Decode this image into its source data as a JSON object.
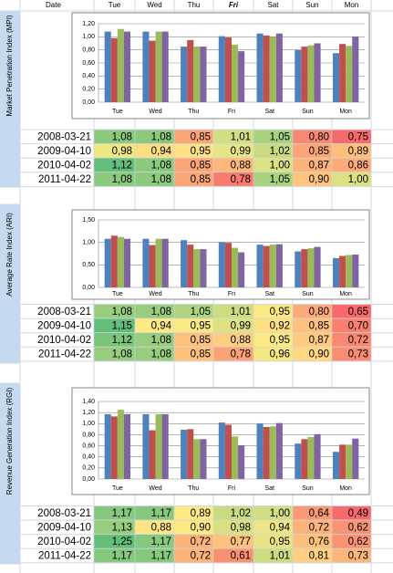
{
  "header": {
    "date": "Date",
    "days": [
      "Tue",
      "Wed",
      "Thu",
      "Fri",
      "Sat",
      "Sun",
      "Mon"
    ]
  },
  "chart_data": [
    {
      "type": "bar",
      "y_label": "Market Penetration Index (MPI)",
      "categories": [
        "Tue",
        "Wed",
        "Thu",
        "Fri",
        "Sat",
        "Sun",
        "Mon"
      ],
      "ylim": [
        0,
        1.2
      ],
      "yticks": [
        {
          "value": 0,
          "label": "0,00"
        },
        {
          "value": 0.2,
          "label": "0,20"
        },
        {
          "value": 0.4,
          "label": "0,40"
        },
        {
          "value": 0.6,
          "label": "0,60"
        },
        {
          "value": 0.8,
          "label": "0,80"
        },
        {
          "value": 1,
          "label": "1,00"
        },
        {
          "value": 1.2,
          "label": "1,20"
        }
      ],
      "series": [
        {
          "color": "#4f81bd",
          "values": [
            1.08,
            1.08,
            0.85,
            1.01,
            1.05,
            0.8,
            0.75
          ]
        },
        {
          "color": "#c0504d",
          "values": [
            0.98,
            0.94,
            0.95,
            0.99,
            1.02,
            0.85,
            0.89
          ]
        },
        {
          "color": "#9bbb59",
          "values": [
            1.12,
            1.08,
            0.85,
            0.88,
            1.0,
            0.87,
            0.86
          ]
        },
        {
          "color": "#8064a2",
          "values": [
            1.08,
            1.08,
            0.85,
            0.78,
            1.05,
            0.9,
            1.0
          ]
        }
      ]
    },
    {
      "type": "bar",
      "y_label": "Average Rate Index (ARI)",
      "categories": [
        "Tue",
        "Wed",
        "Thu",
        "Fri",
        "Sat",
        "Sun",
        "Mon"
      ],
      "ylim": [
        0,
        1.5
      ],
      "yticks": [
        {
          "value": 0,
          "label": "0,00"
        },
        {
          "value": 0.5,
          "label": "0,50"
        },
        {
          "value": 1,
          "label": "1,00"
        },
        {
          "value": 1.5,
          "label": "1,50"
        }
      ],
      "series": [
        {
          "color": "#4f81bd",
          "values": [
            1.08,
            1.08,
            1.05,
            1.01,
            0.95,
            0.8,
            0.65
          ]
        },
        {
          "color": "#c0504d",
          "values": [
            1.15,
            0.94,
            0.95,
            0.99,
            0.92,
            0.85,
            0.7
          ]
        },
        {
          "color": "#9bbb59",
          "values": [
            1.12,
            1.08,
            0.85,
            0.88,
            0.95,
            0.87,
            0.72
          ]
        },
        {
          "color": "#8064a2",
          "values": [
            1.08,
            1.08,
            0.85,
            0.78,
            0.96,
            0.9,
            0.73
          ]
        }
      ]
    },
    {
      "type": "bar",
      "y_label": "Revenue Generation Index (RGI)",
      "categories": [
        "Tue",
        "Wed",
        "Thu",
        "Fri",
        "Sat",
        "Sun",
        "Mon"
      ],
      "ylim": [
        0,
        1.4
      ],
      "yticks": [
        {
          "value": 0,
          "label": "0,00"
        },
        {
          "value": 0.2,
          "label": "0,20"
        },
        {
          "value": 0.4,
          "label": "0,40"
        },
        {
          "value": 0.6,
          "label": "0,60"
        },
        {
          "value": 0.8,
          "label": "0,80"
        },
        {
          "value": 1,
          "label": "1,00"
        },
        {
          "value": 1.2,
          "label": "1,20"
        },
        {
          "value": 1.4,
          "label": "1,40"
        }
      ],
      "series": [
        {
          "color": "#4f81bd",
          "values": [
            1.17,
            1.17,
            0.89,
            1.02,
            1.0,
            0.64,
            0.49
          ]
        },
        {
          "color": "#c0504d",
          "values": [
            1.13,
            0.88,
            0.9,
            0.98,
            0.94,
            0.72,
            0.62
          ]
        },
        {
          "color": "#9bbb59",
          "values": [
            1.25,
            1.17,
            0.72,
            0.77,
            0.95,
            0.76,
            0.62
          ]
        },
        {
          "color": "#8064a2",
          "values": [
            1.17,
            1.17,
            0.72,
            0.61,
            1.01,
            0.81,
            0.73
          ]
        }
      ]
    }
  ],
  "tables": [
    {
      "rows": [
        [
          "2008-03-21",
          "1,08",
          "1,08",
          "0,85",
          "1,01",
          "1,05",
          "0,80",
          "0,75"
        ],
        [
          "2009-04-10",
          "0,98",
          "0,94",
          "0,95",
          "0,99",
          "1,02",
          "0,85",
          "0,89"
        ],
        [
          "2010-04-02",
          "1,12",
          "1,08",
          "0,85",
          "0,88",
          "1,00",
          "0,87",
          "0,86"
        ],
        [
          "2011-04-22",
          "1,08",
          "1,08",
          "0,85",
          "0,78",
          "1,05",
          "0,90",
          "1,00"
        ]
      ]
    },
    {
      "rows": [
        [
          "2008-03-21",
          "1,08",
          "1,08",
          "1,05",
          "1,01",
          "0,95",
          "0,80",
          "0,65"
        ],
        [
          "2009-04-10",
          "1,15",
          "0,94",
          "0,95",
          "0,99",
          "0,92",
          "0,85",
          "0,70"
        ],
        [
          "2010-04-02",
          "1,12",
          "1,08",
          "0,85",
          "0,88",
          "0,95",
          "0,87",
          "0,72"
        ],
        [
          "2011-04-22",
          "1,08",
          "1,08",
          "0,85",
          "0,78",
          "0,96",
          "0,90",
          "0,73"
        ]
      ]
    },
    {
      "rows": [
        [
          "2008-03-21",
          "1,17",
          "1,17",
          "0,89",
          "1,02",
          "1,00",
          "0,64",
          "0,49"
        ],
        [
          "2009-04-10",
          "1,13",
          "0,88",
          "0,90",
          "0,98",
          "0,94",
          "0,72",
          "0,62"
        ],
        [
          "2010-04-02",
          "1,25",
          "1,17",
          "0,72",
          "0,77",
          "0,95",
          "0,76",
          "0,62"
        ],
        [
          "2011-04-22",
          "1,17",
          "1,17",
          "0,72",
          "0,61",
          "1,01",
          "0,81",
          "0,73"
        ]
      ]
    }
  ]
}
